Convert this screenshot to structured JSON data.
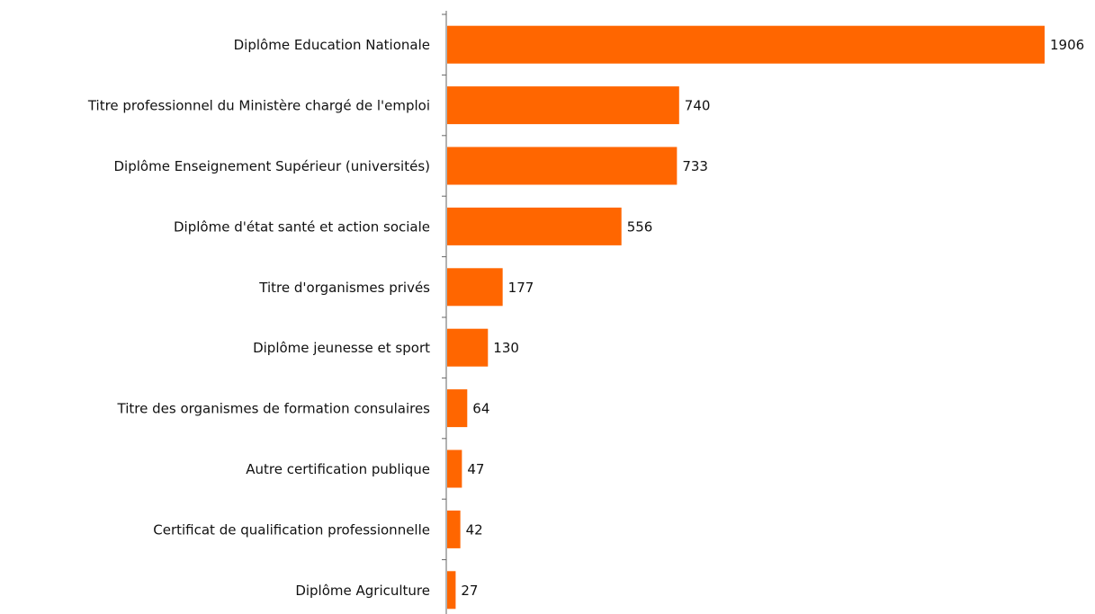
{
  "chart_data": {
    "type": "bar",
    "orientation": "horizontal",
    "categories": [
      "Diplôme Education Nationale",
      "Titre professionnel du Ministère chargé de l'emploi",
      "Diplôme Enseignement Supérieur (universités)",
      "Diplôme d'état santé et action sociale",
      "Titre d'organismes privés",
      "Diplôme jeunesse et sport",
      "Titre des organismes de formation consulaires",
      "Autre certification publique",
      "Certificat de qualification professionnelle",
      "Diplôme Agriculture"
    ],
    "values": [
      1906,
      740,
      733,
      556,
      177,
      130,
      64,
      47,
      42,
      27
    ],
    "color": "#ff6600"
  }
}
